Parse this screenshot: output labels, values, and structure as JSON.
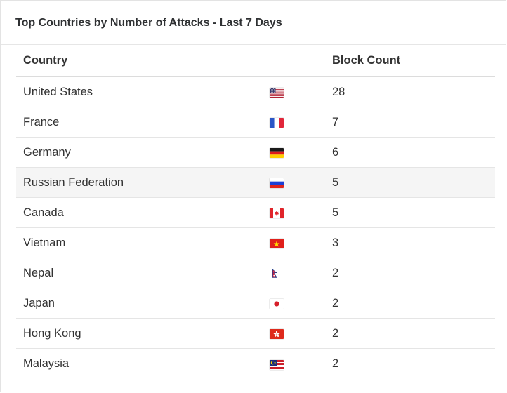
{
  "widget": {
    "title": "Top Countries by Number of Attacks - Last 7 Days"
  },
  "table": {
    "headers": {
      "country": "Country",
      "count": "Block Count"
    },
    "rows": [
      {
        "country": "United States",
        "flag": "us-flag-icon",
        "count": "28"
      },
      {
        "country": "France",
        "flag": "fr-flag-icon",
        "count": "7"
      },
      {
        "country": "Germany",
        "flag": "de-flag-icon",
        "count": "6"
      },
      {
        "country": "Russian Federation",
        "flag": "ru-flag-icon",
        "count": "5"
      },
      {
        "country": "Canada",
        "flag": "ca-flag-icon",
        "count": "5"
      },
      {
        "country": "Vietnam",
        "flag": "vn-flag-icon",
        "count": "3"
      },
      {
        "country": "Nepal",
        "flag": "np-flag-icon",
        "count": "2"
      },
      {
        "country": "Japan",
        "flag": "jp-flag-icon",
        "count": "2"
      },
      {
        "country": "Hong Kong",
        "flag": "hk-flag-icon",
        "count": "2"
      },
      {
        "country": "Malaysia",
        "flag": "my-flag-icon",
        "count": "2"
      }
    ]
  },
  "colors": {
    "row_highlight": "#f5f5f5",
    "header_border": "#dcdcdc",
    "row_border": "#e5e5e5"
  }
}
